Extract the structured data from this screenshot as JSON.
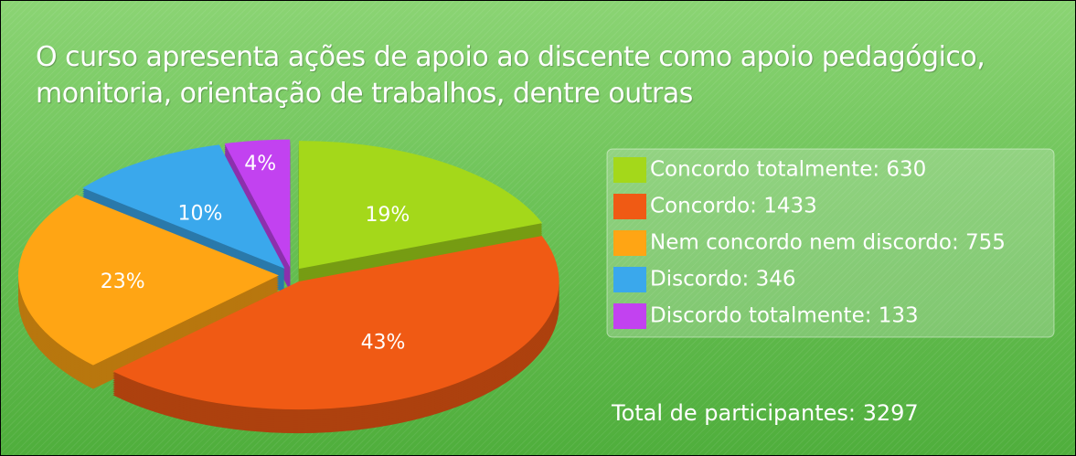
{
  "chart_data": {
    "type": "pie",
    "title": "O curso apresenta ações de apoio ao discente como apoio pedagógico, monitoria, orientação de trabalhos, dentre outras",
    "categories": [
      "Concordo totalmente: 630",
      "Concordo: 1433",
      "Nem concordo nem discordo: 755",
      "Discordo: 346",
      "Discordo totalmente: 133"
    ],
    "values": [
      19,
      43,
      23,
      10,
      4
    ],
    "value_labels": [
      "19%",
      "43%",
      "23%",
      "10%",
      "4%"
    ],
    "colors": [
      "#a4d81a",
      "#f05a14",
      "#ffa514",
      "#3aa8ec",
      "#c242f0"
    ],
    "annotation": "Total de participantes: 3297"
  }
}
